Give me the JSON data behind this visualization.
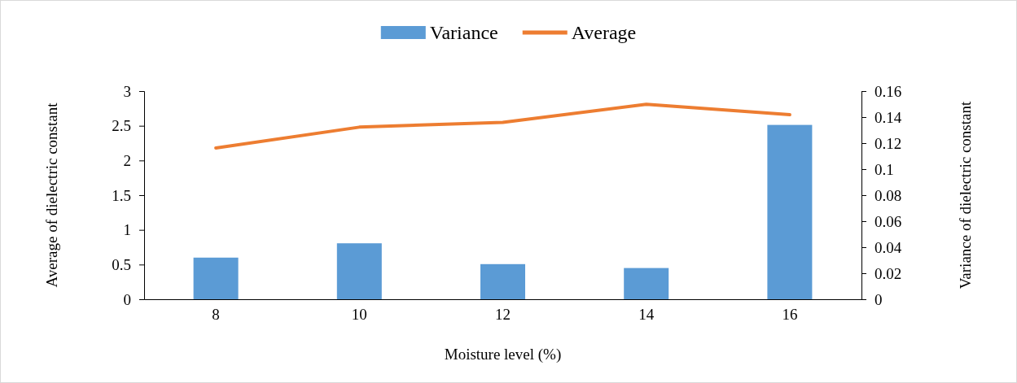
{
  "chart_data": {
    "type": "bar",
    "xlabel": "Moisture level (%)",
    "ylabel": "Average of dielectric constant",
    "y2label": "Variance of dielectric constant",
    "categories": [
      "8",
      "10",
      "12",
      "14",
      "16"
    ],
    "series": [
      {
        "name": "Variance",
        "axis": "y2",
        "color": "#5b9bd5",
        "values": [
          0.032,
          0.043,
          0.027,
          0.024,
          0.134
        ]
      },
      {
        "name": "Average",
        "type": "line",
        "axis": "y",
        "color": "#ed7d31",
        "values": [
          2.18,
          2.48,
          2.55,
          2.81,
          2.66
        ]
      }
    ],
    "ylim": [
      0,
      3
    ],
    "yticks": [
      0,
      0.5,
      1,
      1.5,
      2,
      2.5,
      3
    ],
    "y2lim": [
      0,
      0.16
    ],
    "y2ticks": [
      0,
      0.02,
      0.04,
      0.06,
      0.08,
      0.1,
      0.12,
      0.14,
      0.16
    ],
    "legend": "top",
    "grid": false,
    "marker": "none",
    "line_style": "solid"
  }
}
